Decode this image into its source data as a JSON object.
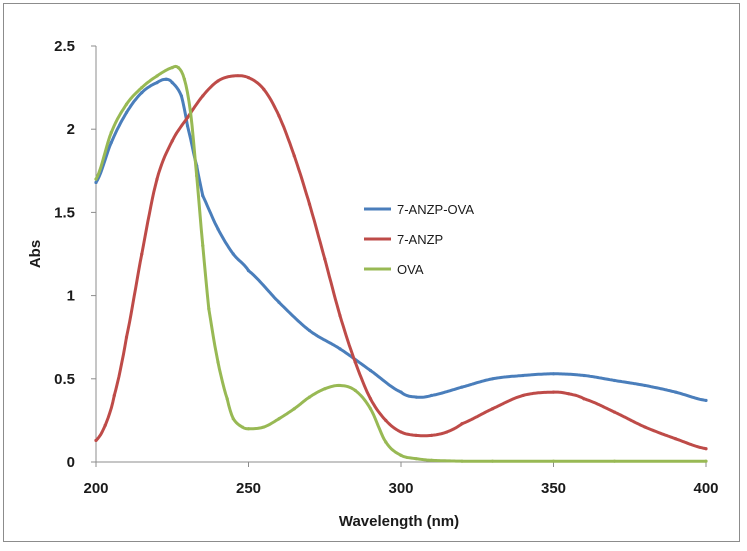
{
  "chart_data": {
    "type": "line",
    "title": "",
    "xlabel": "Wavelength (nm)",
    "ylabel": "Abs",
    "xlim": [
      200,
      400
    ],
    "ylim": [
      0,
      2.5
    ],
    "xticks": [
      200,
      250,
      300,
      350,
      400
    ],
    "yticks": [
      0,
      0.5,
      1,
      1.5,
      2,
      2.5
    ],
    "xtick_labels": [
      "200",
      "250",
      "300",
      "350",
      "400"
    ],
    "ytick_labels": [
      "0",
      "0.5",
      "1",
      "1.5",
      "2",
      "2.5"
    ],
    "grid": false,
    "legend_position": "center-right",
    "series": [
      {
        "name": "7-ANZP-OVA",
        "color": "#4a7ebb",
        "x": [
          200,
          205,
          210,
          215,
          220,
          223,
          225,
          228,
          230,
          233,
          235,
          240,
          245,
          250,
          260,
          270,
          280,
          290,
          300,
          305,
          310,
          320,
          330,
          340,
          350,
          360,
          370,
          380,
          390,
          400
        ],
        "y": [
          1.68,
          1.92,
          2.1,
          2.22,
          2.28,
          2.3,
          2.28,
          2.2,
          2.02,
          1.78,
          1.6,
          1.4,
          1.25,
          1.15,
          0.96,
          0.79,
          0.68,
          0.55,
          0.42,
          0.39,
          0.4,
          0.45,
          0.5,
          0.52,
          0.53,
          0.52,
          0.49,
          0.46,
          0.42,
          0.37
        ]
      },
      {
        "name": "7-ANZP",
        "color": "#be4b48",
        "x": [
          200,
          203,
          206,
          210,
          215,
          220,
          225,
          230,
          235,
          240,
          245,
          250,
          255,
          260,
          265,
          270,
          275,
          280,
          285,
          290,
          295,
          300,
          305,
          310,
          315,
          320,
          330,
          340,
          350,
          355,
          360,
          370,
          380,
          390,
          400
        ],
        "y": [
          0.13,
          0.22,
          0.4,
          0.75,
          1.25,
          1.7,
          1.93,
          2.07,
          2.2,
          2.29,
          2.32,
          2.31,
          2.24,
          2.08,
          1.84,
          1.55,
          1.22,
          0.88,
          0.6,
          0.38,
          0.25,
          0.18,
          0.16,
          0.16,
          0.18,
          0.23,
          0.32,
          0.4,
          0.42,
          0.41,
          0.38,
          0.3,
          0.21,
          0.14,
          0.08
        ]
      },
      {
        "name": "OVA",
        "color": "#98b954",
        "x": [
          200,
          205,
          210,
          215,
          220,
          225,
          227,
          229,
          231,
          233,
          235,
          237,
          240,
          243,
          245,
          248,
          250,
          255,
          260,
          265,
          270,
          275,
          280,
          285,
          290,
          295,
          300,
          305,
          310,
          320,
          330,
          350,
          370,
          400
        ],
        "y": [
          1.7,
          1.98,
          2.15,
          2.25,
          2.32,
          2.37,
          2.37,
          2.3,
          2.1,
          1.72,
          1.3,
          0.92,
          0.6,
          0.38,
          0.26,
          0.21,
          0.2,
          0.21,
          0.26,
          0.32,
          0.39,
          0.44,
          0.46,
          0.43,
          0.32,
          0.12,
          0.04,
          0.02,
          0.01,
          0.005,
          0.005,
          0.005,
          0.005,
          0.005
        ]
      }
    ]
  }
}
